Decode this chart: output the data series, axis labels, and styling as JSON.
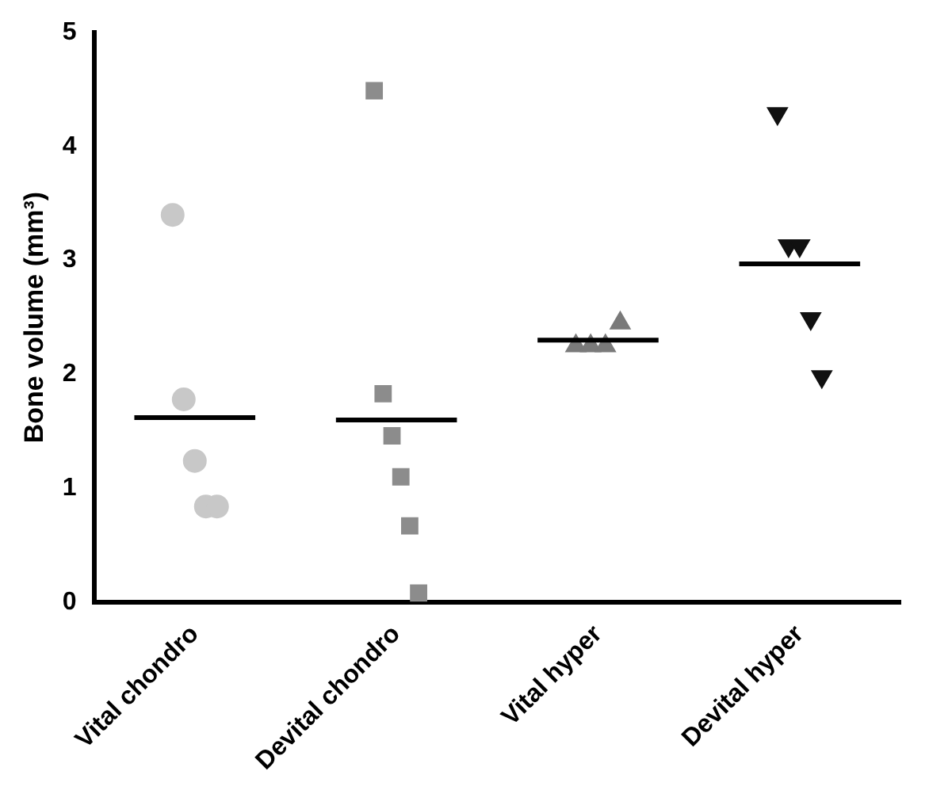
{
  "chart_data": {
    "type": "scatter",
    "ylabel": "Bone volume (mm³)",
    "categories": [
      "Vital chondro",
      "Devital chondro",
      "Vital hyper",
      "Devital hyper"
    ],
    "ylim": [
      0,
      5
    ],
    "yticks": [
      0,
      1,
      2,
      3,
      4,
      5
    ],
    "grid": false,
    "legend": false,
    "series": [
      {
        "type": "scatter",
        "marker": "circle",
        "color": "#c8c8c8",
        "x": [
          "Vital chondro",
          "Vital chondro",
          "Vital chondro",
          "Vital chondro",
          "Vital chondro"
        ],
        "values": [
          3.4,
          1.78,
          1.24,
          0.84,
          0.84
        ]
      },
      {
        "type": "scatter",
        "marker": "square",
        "color": "#8c8c8c",
        "x": [
          "Devital chondro",
          "Devital chondro",
          "Devital chondro",
          "Devital chondro",
          "Devital chondro",
          "Devital chondro"
        ],
        "values": [
          4.49,
          1.83,
          1.46,
          1.1,
          0.67,
          0.08
        ]
      },
      {
        "type": "scatter",
        "marker": "triangle",
        "color": "#7a7a7a",
        "x": [
          "Vital hyper",
          "Vital hyper",
          "Vital hyper",
          "Vital hyper"
        ],
        "values": [
          2.25,
          2.25,
          2.25,
          2.45
        ]
      },
      {
        "type": "scatter",
        "marker": "triangle-down",
        "color": "#111111",
        "x": [
          "Devital hyper",
          "Devital hyper",
          "Devital hyper",
          "Devital hyper",
          "Devital hyper"
        ],
        "values": [
          4.29,
          3.13,
          3.13,
          2.49,
          1.98
        ]
      }
    ],
    "ref_lines": [
      {
        "axis": "y",
        "value": 1.62,
        "color": "#000000"
      },
      {
        "axis": "y",
        "value": 1.6,
        "color": "#000000"
      },
      {
        "axis": "y",
        "value": 2.3,
        "color": "#000000"
      },
      {
        "axis": "y",
        "value": 2.97,
        "color": "#000000"
      }
    ]
  }
}
